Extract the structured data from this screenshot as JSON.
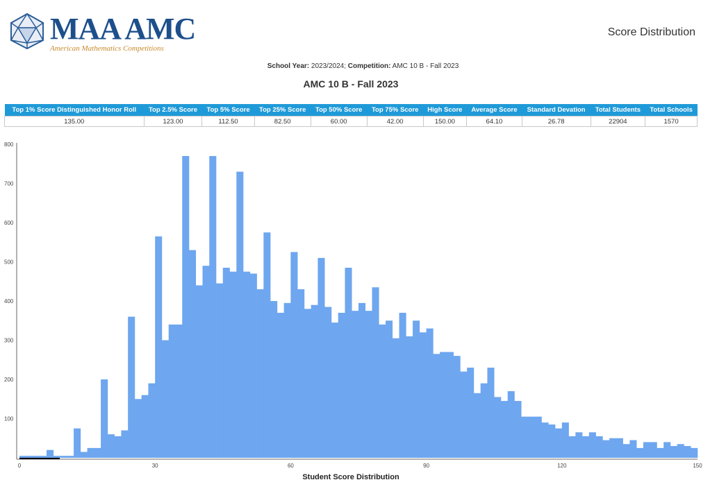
{
  "header": {
    "logo_text": "MAA AMC",
    "logo_tagline": "American Mathematics Competitions",
    "page_title": "Score Distribution"
  },
  "meta": {
    "school_year_label": "School Year:",
    "school_year": "2023/2024;",
    "competition_label": "Competition:",
    "competition": "AMC 10 B - Fall 2023"
  },
  "competition_title": "AMC 10 B - Fall 2023",
  "stats_table": {
    "headers": [
      "Top 1% Score Distinguished Honor Roll",
      "Top 2.5% Score",
      "Top 5% Score",
      "Top 25% Score",
      "Top 50% Score",
      "Top 75% Score",
      "High Score",
      "Average Score",
      "Standard Devation",
      "Total Students",
      "Total Schools"
    ],
    "values": [
      "135.00",
      "123.00",
      "112.50",
      "82.50",
      "60.00",
      "42.00",
      "150.00",
      "64.10",
      "26.78",
      "22904",
      "1570"
    ]
  },
  "colors": {
    "bar": "#6ea6ef",
    "header": "#1f9ad8"
  },
  "chart_data": {
    "type": "bar",
    "title": "",
    "xlabel": "Student Score Distribution",
    "ylabel": "",
    "xlim": [
      0,
      150
    ],
    "ylim": [
      0,
      800
    ],
    "bin_width": 1.5,
    "x_ticks": [
      "0",
      "30",
      "60",
      "90",
      "120",
      "150"
    ],
    "y_ticks": [
      "100",
      "200",
      "300",
      "400",
      "500",
      "600",
      "700",
      "800"
    ],
    "grid": false,
    "legend": "none",
    "categories": [
      0,
      1.5,
      3,
      4.5,
      6,
      7.5,
      9,
      10.5,
      12,
      13.5,
      15,
      16.5,
      18,
      19.5,
      21,
      22.5,
      24,
      25.5,
      27,
      28.5,
      30,
      31.5,
      33,
      34.5,
      36,
      37.5,
      39,
      40.5,
      42,
      43.5,
      45,
      46.5,
      48,
      49.5,
      51,
      52.5,
      54,
      55.5,
      57,
      58.5,
      60,
      61.5,
      63,
      64.5,
      66,
      67.5,
      69,
      70.5,
      72,
      73.5,
      75,
      76.5,
      78,
      79.5,
      81,
      82.5,
      84,
      85.5,
      87,
      88.5,
      90,
      91.5,
      93,
      94.5,
      96,
      97.5,
      99,
      100.5,
      102,
      103.5,
      105,
      106.5,
      108,
      109.5,
      111,
      112.5,
      114,
      115.5,
      117,
      118.5,
      120,
      121.5,
      123,
      124.5,
      126,
      127.5,
      129,
      130.5,
      132,
      133.5,
      135,
      136.5,
      138,
      139.5,
      141,
      142.5,
      144,
      145.5,
      147,
      148.5
    ],
    "values": [
      5,
      5,
      5,
      5,
      20,
      5,
      5,
      5,
      75,
      15,
      25,
      25,
      200,
      60,
      55,
      70,
      360,
      150,
      160,
      190,
      565,
      300,
      340,
      340,
      770,
      530,
      440,
      490,
      770,
      445,
      485,
      475,
      730,
      475,
      470,
      430,
      575,
      400,
      370,
      395,
      525,
      430,
      380,
      390,
      510,
      385,
      345,
      370,
      485,
      375,
      395,
      375,
      435,
      340,
      350,
      305,
      370,
      310,
      350,
      320,
      330,
      265,
      270,
      270,
      260,
      220,
      230,
      165,
      190,
      230,
      155,
      145,
      170,
      145,
      105,
      105,
      105,
      90,
      85,
      75,
      90,
      55,
      65,
      55,
      65,
      55,
      45,
      50,
      50,
      35,
      45,
      25,
      40,
      40,
      25,
      40,
      30,
      35,
      30,
      25
    ]
  }
}
